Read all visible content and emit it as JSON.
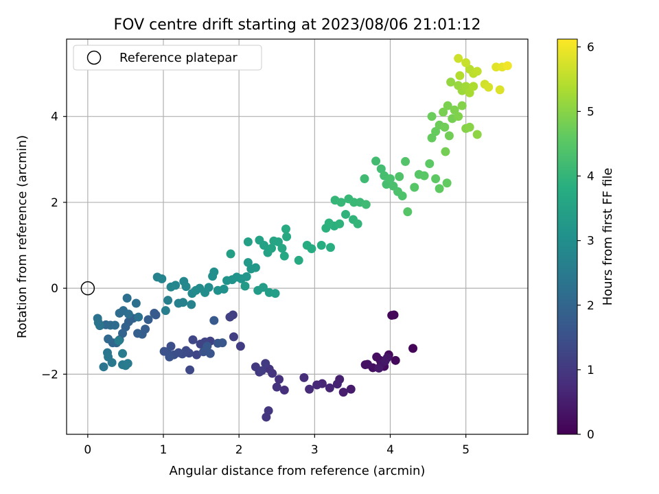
{
  "chart_data": {
    "type": "scatter",
    "title": "FOV centre drift starting at 2023/08/06 21:01:12",
    "xlabel": "Angular distance from reference (arcmin)",
    "ylabel": "Rotation from reference (arcmin)",
    "xlim": [
      -0.28,
      5.82
    ],
    "ylim": [
      -3.4,
      5.8
    ],
    "xticks": [
      0,
      1,
      2,
      3,
      4,
      5
    ],
    "yticks": [
      -2,
      0,
      2,
      4
    ],
    "grid": true,
    "legend": {
      "position": "upper-left",
      "entries": [
        {
          "label": "Reference platepar",
          "marker": "open-circle"
        }
      ]
    },
    "reference_point": {
      "x": 0,
      "y": 0
    },
    "colorbar": {
      "label": "Hours from first FF file",
      "colormap": "viridis",
      "range": [
        0,
        6.12
      ],
      "ticks": [
        0,
        1,
        2,
        3,
        4,
        5,
        6
      ]
    },
    "points": [
      [
        4.3,
        -1.4,
        0.05
      ],
      [
        4.05,
        -0.62,
        0.08
      ],
      [
        4.02,
        -0.63,
        0.1
      ],
      [
        4.07,
        -1.68,
        0.12
      ],
      [
        3.98,
        -1.55,
        0.15
      ],
      [
        3.92,
        -1.82,
        0.18
      ],
      [
        3.87,
        -1.68,
        0.2
      ],
      [
        3.82,
        -1.6,
        0.22
      ],
      [
        3.77,
        -1.85,
        0.25
      ],
      [
        3.7,
        -1.77,
        0.28
      ],
      [
        3.67,
        -1.78,
        0.3
      ],
      [
        3.88,
        -1.77,
        0.32
      ],
      [
        3.96,
        -1.62,
        0.35
      ],
      [
        3.93,
        -1.7,
        0.38
      ],
      [
        3.85,
        -1.86,
        0.4
      ],
      [
        3.48,
        -2.35,
        0.45
      ],
      [
        3.38,
        -2.42,
        0.5
      ],
      [
        3.33,
        -2.12,
        0.55
      ],
      [
        3.3,
        -2.23,
        0.58
      ],
      [
        3.2,
        -2.32,
        0.62
      ],
      [
        3.1,
        -2.22,
        0.65
      ],
      [
        3.03,
        -2.25,
        0.7
      ],
      [
        2.93,
        -2.35,
        0.75
      ],
      [
        2.86,
        -2.08,
        0.78
      ],
      [
        2.6,
        -2.37,
        0.82
      ],
      [
        2.53,
        -2.12,
        0.85
      ],
      [
        2.5,
        -2.3,
        0.88
      ],
      [
        2.44,
        -1.98,
        0.9
      ],
      [
        2.4,
        -1.88,
        0.92
      ],
      [
        2.36,
        -3.0,
        0.95
      ],
      [
        2.39,
        -2.85,
        0.97
      ],
      [
        2.27,
        -1.95,
        1.0
      ],
      [
        2.22,
        -1.83,
        1.02
      ],
      [
        2.35,
        -1.75,
        1.05
      ],
      [
        2.3,
        -1.92,
        1.08
      ],
      [
        2.02,
        -1.35,
        1.1
      ],
      [
        1.93,
        -1.13,
        1.12
      ],
      [
        1.92,
        -0.62,
        1.15
      ],
      [
        1.88,
        -0.67,
        1.17
      ],
      [
        1.62,
        -1.23,
        1.2
      ],
      [
        1.55,
        -1.25,
        1.22
      ],
      [
        1.49,
        -1.3,
        1.25
      ],
      [
        1.44,
        -1.55,
        1.27
      ],
      [
        1.39,
        -1.2,
        1.3
      ],
      [
        1.35,
        -1.9,
        1.32
      ],
      [
        1.34,
        -1.51,
        1.35
      ],
      [
        1.3,
        -1.45,
        1.37
      ],
      [
        1.25,
        -1.53,
        1.4
      ],
      [
        1.2,
        -1.5,
        1.42
      ],
      [
        1.14,
        -1.55,
        1.45
      ],
      [
        1.1,
        -1.35,
        1.47
      ],
      [
        1.05,
        -1.48,
        1.5
      ],
      [
        1.01,
        -1.47,
        1.52
      ],
      [
        1.08,
        -1.6,
        1.55
      ],
      [
        1.53,
        -1.48,
        1.57
      ],
      [
        1.62,
        -1.52,
        1.6
      ],
      [
        1.72,
        -1.28,
        1.62
      ],
      [
        1.78,
        -1.27,
        1.65
      ],
      [
        1.58,
        -1.35,
        1.67
      ],
      [
        1.67,
        -0.75,
        1.7
      ],
      [
        0.9,
        -0.62,
        1.72
      ],
      [
        0.88,
        -0.58,
        1.75
      ],
      [
        0.8,
        -0.73,
        1.77
      ],
      [
        0.76,
        -0.95,
        1.8
      ],
      [
        0.72,
        -1.07,
        1.82
      ],
      [
        0.66,
        -1.05,
        1.85
      ],
      [
        0.6,
        -0.7,
        1.87
      ],
      [
        0.54,
        -0.78,
        1.9
      ],
      [
        0.5,
        -0.9,
        1.92
      ],
      [
        0.46,
        -1.05,
        1.95
      ],
      [
        0.42,
        -1.2,
        1.97
      ],
      [
        0.38,
        -1.27,
        2.0
      ],
      [
        0.33,
        -1.27,
        2.02
      ],
      [
        0.27,
        -1.18,
        2.05
      ],
      [
        0.24,
        -0.85,
        2.07
      ],
      [
        0.3,
        -0.86,
        2.1
      ],
      [
        0.36,
        -0.86,
        2.12
      ],
      [
        0.42,
        -0.58,
        2.15
      ],
      [
        0.47,
        -0.52,
        2.17
      ],
      [
        0.54,
        -0.6,
        2.2
      ],
      [
        0.52,
        -0.23,
        2.22
      ],
      [
        0.64,
        -0.35,
        2.25
      ],
      [
        0.67,
        -0.67,
        2.27
      ],
      [
        0.13,
        -0.7,
        2.3
      ],
      [
        0.14,
        -0.8,
        2.32
      ],
      [
        0.16,
        -0.87,
        2.35
      ],
      [
        0.21,
        -1.83,
        2.37
      ],
      [
        0.26,
        -1.5,
        2.4
      ],
      [
        0.27,
        -1.6,
        2.42
      ],
      [
        0.32,
        -1.73,
        2.45
      ],
      [
        0.46,
        -1.78,
        2.47
      ],
      [
        0.5,
        -1.8,
        2.5
      ],
      [
        0.53,
        -1.75,
        2.52
      ],
      [
        0.46,
        -1.52,
        2.55
      ],
      [
        0.41,
        -1.22,
        2.57
      ],
      [
        1.03,
        -0.52,
        2.6
      ],
      [
        1.06,
        -0.28,
        2.62
      ],
      [
        1.2,
        -0.35,
        2.65
      ],
      [
        1.26,
        -0.33,
        2.67
      ],
      [
        1.37,
        -0.38,
        2.7
      ],
      [
        0.92,
        0.26,
        2.72
      ],
      [
        0.98,
        0.22,
        2.75
      ],
      [
        1.1,
        0.03,
        2.77
      ],
      [
        1.16,
        0.07,
        2.8
      ],
      [
        1.27,
        0.16,
        2.82
      ],
      [
        1.3,
        0.04,
        2.85
      ],
      [
        1.38,
        -0.12,
        2.87
      ],
      [
        1.43,
        -0.05,
        2.9
      ],
      [
        1.48,
        0.0,
        2.92
      ],
      [
        1.55,
        -0.1,
        2.95
      ],
      [
        1.6,
        0.02,
        2.97
      ],
      [
        1.65,
        0.28,
        3.0
      ],
      [
        1.67,
        0.38,
        3.02
      ],
      [
        1.72,
        -0.05,
        3.05
      ],
      [
        1.8,
        -0.02,
        3.07
      ],
      [
        1.84,
        0.18,
        3.1
      ],
      [
        1.91,
        0.2,
        3.12
      ],
      [
        1.97,
        0.26,
        3.15
      ],
      [
        2.03,
        0.22,
        3.17
      ],
      [
        2.1,
        0.27,
        3.2
      ],
      [
        2.16,
        0.45,
        3.22
      ],
      [
        2.22,
        0.48,
        3.25
      ],
      [
        2.12,
        0.6,
        3.27
      ],
      [
        2.08,
        0.05,
        3.3
      ],
      [
        2.25,
        -0.05,
        3.32
      ],
      [
        2.32,
        0.02,
        3.35
      ],
      [
        2.4,
        -0.1,
        3.37
      ],
      [
        2.48,
        -0.12,
        3.4
      ],
      [
        1.89,
        0.8,
        3.42
      ],
      [
        2.12,
        1.08,
        3.45
      ],
      [
        2.27,
        1.12,
        3.47
      ],
      [
        2.33,
        1.0,
        3.5
      ],
      [
        2.38,
        0.83,
        3.52
      ],
      [
        2.43,
        0.93,
        3.55
      ],
      [
        2.46,
        1.1,
        3.57
      ],
      [
        2.52,
        1.08,
        3.6
      ],
      [
        2.57,
        0.93,
        3.62
      ],
      [
        2.6,
        0.75,
        3.65
      ],
      [
        2.63,
        1.2,
        3.67
      ],
      [
        2.62,
        1.38,
        3.7
      ],
      [
        2.79,
        0.65,
        3.72
      ],
      [
        2.9,
        1.0,
        3.75
      ],
      [
        2.96,
        0.92,
        3.77
      ],
      [
        3.09,
        1.0,
        3.8
      ],
      [
        3.21,
        0.95,
        3.82
      ],
      [
        3.26,
        1.45,
        3.85
      ],
      [
        3.15,
        1.4,
        3.87
      ],
      [
        3.19,
        1.52,
        3.9
      ],
      [
        3.33,
        1.5,
        3.92
      ],
      [
        3.41,
        1.72,
        3.95
      ],
      [
        3.51,
        1.6,
        3.97
      ],
      [
        3.57,
        1.5,
        4.0
      ],
      [
        3.27,
        2.05,
        4.02
      ],
      [
        3.35,
        2.0,
        4.05
      ],
      [
        3.45,
        2.08,
        4.07
      ],
      [
        3.52,
        2.0,
        4.1
      ],
      [
        3.6,
        2.0,
        4.12
      ],
      [
        3.68,
        1.95,
        4.15
      ],
      [
        3.66,
        2.55,
        4.17
      ],
      [
        3.81,
        2.96,
        4.2
      ],
      [
        3.88,
        2.78,
        4.22
      ],
      [
        3.92,
        2.62,
        4.25
      ],
      [
        3.95,
        2.42,
        4.27
      ],
      [
        4.0,
        2.55,
        4.3
      ],
      [
        4.04,
        2.38,
        4.32
      ],
      [
        4.1,
        2.25,
        4.35
      ],
      [
        4.16,
        2.15,
        4.37
      ],
      [
        4.12,
        2.6,
        4.4
      ],
      [
        4.2,
        2.95,
        4.42
      ],
      [
        4.23,
        1.78,
        4.45
      ],
      [
        4.32,
        2.35,
        4.47
      ],
      [
        4.38,
        2.65,
        4.5
      ],
      [
        4.45,
        2.62,
        4.52
      ],
      [
        4.52,
        2.9,
        4.55
      ],
      [
        4.6,
        2.55,
        4.57
      ],
      [
        4.65,
        2.32,
        4.6
      ],
      [
        4.75,
        2.45,
        4.62
      ],
      [
        4.55,
        3.5,
        4.65
      ],
      [
        4.6,
        3.65,
        4.67
      ],
      [
        4.55,
        4.0,
        4.7
      ],
      [
        4.65,
        3.8,
        4.72
      ],
      [
        4.72,
        3.75,
        4.75
      ],
      [
        4.78,
        3.55,
        4.77
      ],
      [
        4.73,
        3.18,
        4.8
      ],
      [
        4.82,
        3.95,
        4.82
      ],
      [
        4.7,
        4.1,
        4.85
      ],
      [
        4.76,
        4.25,
        4.87
      ],
      [
        4.85,
        4.15,
        4.9
      ],
      [
        4.9,
        4.0,
        4.92
      ],
      [
        4.95,
        4.25,
        4.95
      ],
      [
        5.0,
        3.72,
        4.97
      ],
      [
        5.05,
        3.75,
        5.0
      ],
      [
        5.15,
        3.58,
        5.05
      ],
      [
        4.8,
        4.8,
        5.1
      ],
      [
        4.9,
        4.72,
        5.15
      ],
      [
        4.95,
        4.6,
        5.2
      ],
      [
        5.0,
        4.7,
        5.25
      ],
      [
        5.05,
        4.55,
        5.3
      ],
      [
        5.1,
        4.7,
        5.35
      ],
      [
        4.92,
        4.95,
        5.4
      ],
      [
        5.05,
        5.1,
        5.45
      ],
      [
        5.1,
        5.0,
        5.5
      ],
      [
        5.15,
        5.05,
        5.55
      ],
      [
        5.0,
        5.25,
        5.6
      ],
      [
        4.9,
        5.35,
        5.65
      ],
      [
        5.25,
        4.75,
        5.7
      ],
      [
        5.3,
        4.68,
        5.75
      ],
      [
        5.45,
        4.62,
        5.8
      ],
      [
        5.4,
        5.15,
        5.85
      ],
      [
        5.48,
        5.15,
        5.9
      ],
      [
        5.55,
        5.18,
        6.0
      ]
    ]
  }
}
